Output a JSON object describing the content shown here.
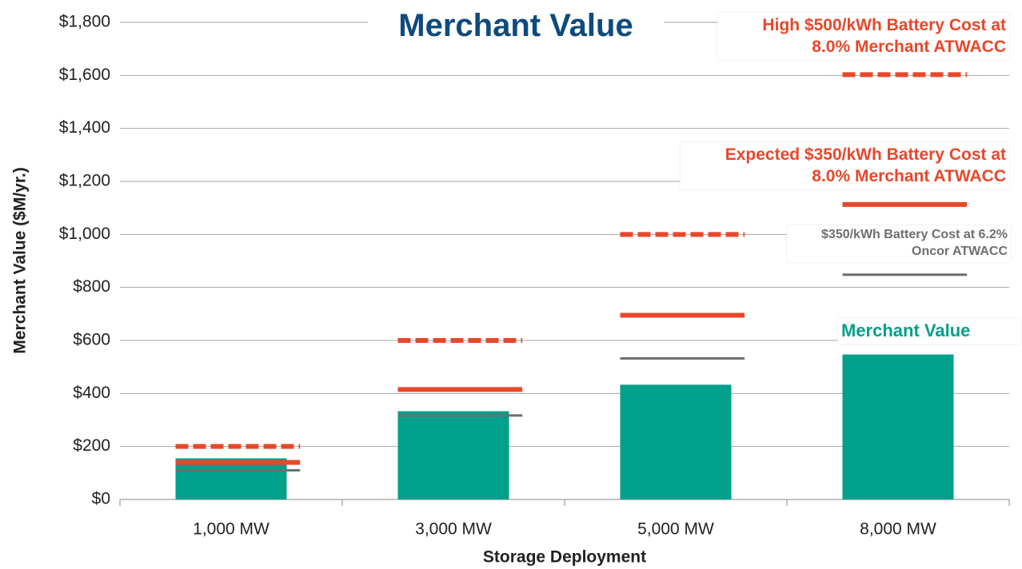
{
  "chart_data": {
    "type": "bar",
    "title": "Merchant Value",
    "x_label": "Storage Deployment",
    "y_label": "Merchant Value ($M/yr.)",
    "categories": [
      "1,000 MW",
      "3,000 MW",
      "5,000 MW",
      "8,000 MW"
    ],
    "series": [
      {
        "name": "Merchant Value",
        "type": "bar",
        "color": "#00a08a",
        "values": [
          155,
          333,
          433,
          547
        ]
      },
      {
        "name": "High $500/kWh Battery Cost at 8.0% Merchant  ATWACC",
        "type": "marker",
        "style": "dashed",
        "color": "#e8472a",
        "values": [
          200,
          600,
          1000,
          1603
        ]
      },
      {
        "name": "Expected $350/kWh Battery Cost at 8.0% Merchant ATWACC",
        "type": "marker",
        "style": "solid",
        "color": "#e8472a",
        "values": [
          140,
          415,
          695,
          1113
        ]
      },
      {
        "name": "$350/kWh Battery Cost at 6.2% Oncor ATWACC",
        "type": "marker",
        "style": "thin",
        "color": "#6d6e71",
        "values": [
          110,
          317,
          532,
          848
        ]
      }
    ],
    "ylim": [
      0,
      1800
    ],
    "yticks": [
      {
        "value": 0,
        "label": "$0"
      },
      {
        "value": 200,
        "label": "$200"
      },
      {
        "value": 400,
        "label": "$400"
      },
      {
        "value": 600,
        "label": "$600"
      },
      {
        "value": 800,
        "label": "$800"
      },
      {
        "value": 1000,
        "label": "$1,000"
      },
      {
        "value": 1200,
        "label": "$1,200"
      },
      {
        "value": 1400,
        "label": "$1,400"
      },
      {
        "value": 1600,
        "label": "$1,600"
      },
      {
        "value": 1800,
        "label": "$1,800"
      }
    ],
    "grid": true
  }
}
